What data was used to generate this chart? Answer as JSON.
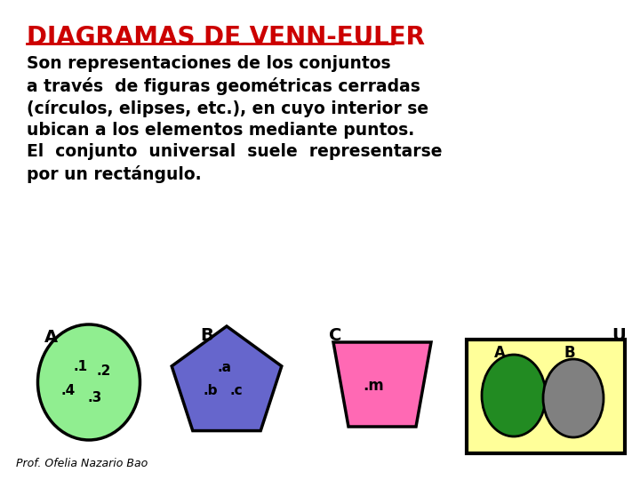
{
  "title": "DIAGRAMAS DE VENN-EULER",
  "title_color": "#CC0000",
  "title_fontsize": 20,
  "body_text": "Son representaciones de los conjuntos\na través  de figuras geométricas cerradas\n(círculos, elipses, etc.), en cuyo interior se\nubican a los elementos mediante puntos.\nEl  conjunto  universal  suele  representarse\npor un rectángulo.",
  "body_fontsize": 13.5,
  "background_color": "#FFFFFF",
  "footer": "Prof. Ofelia Nazario Bao",
  "shape_A_color": "#90EE90",
  "shape_A_edge": "#000000",
  "shape_B_color": "#6666CC",
  "shape_B_edge": "#000000",
  "shape_C_color": "#FF69B4",
  "shape_C_edge": "#000000",
  "rect_U_color": "#FFFF99",
  "rect_U_edge": "#000000",
  "ellipse_A_color": "#228B22",
  "ellipse_B_color": "#808080"
}
